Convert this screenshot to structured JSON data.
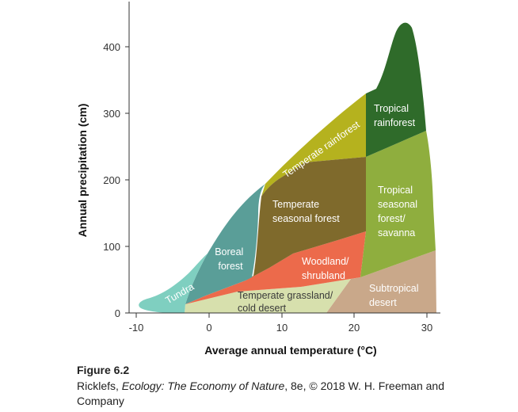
{
  "figure": {
    "number": "Figure 6.2",
    "credit_pre": "Ricklefs, ",
    "credit_title": "Ecology: The Economy of Nature",
    "credit_post": ", 8e, © 2018 W. H. Freeman and Company"
  },
  "axes": {
    "xlabel": "Average annual temperature (°C)",
    "ylabel": "Annual precipitation (cm)",
    "xticks": [
      "-10",
      "0",
      "10",
      "20",
      "30"
    ],
    "yticks": [
      "0",
      "100",
      "200",
      "300",
      "400"
    ]
  },
  "biomes": {
    "tundra": {
      "label": [
        "Tundra"
      ],
      "color": "#7fcfc0"
    },
    "boreal_forest": {
      "label": [
        "Boreal",
        "forest"
      ],
      "color": "#5a9e98"
    },
    "temperate_rainforest": {
      "label": [
        "Temperate rainforest"
      ],
      "color": "#b5b21e"
    },
    "temperate_seasonal_forest": {
      "label": [
        "Temperate",
        "seasonal forest"
      ],
      "color": "#7f6a2c"
    },
    "tropical_rainforest": {
      "label": [
        "Tropical",
        "rainforest"
      ],
      "color": "#2f6b2a"
    },
    "tropical_seasonal_forest": {
      "label": [
        "Tropical",
        "seasonal",
        "forest/",
        "savanna"
      ],
      "color": "#8fae3e"
    },
    "woodland_shrubland": {
      "label": [
        "Woodland/",
        "shrubland"
      ],
      "color": "#ec6a4b"
    },
    "temperate_grassland": {
      "label": [
        "Temperate grassland/",
        "cold desert"
      ],
      "color": "#d7e0ad"
    },
    "subtropical_desert": {
      "label": [
        "Subtropical",
        "desert"
      ],
      "color": "#c9a88a"
    }
  }
}
